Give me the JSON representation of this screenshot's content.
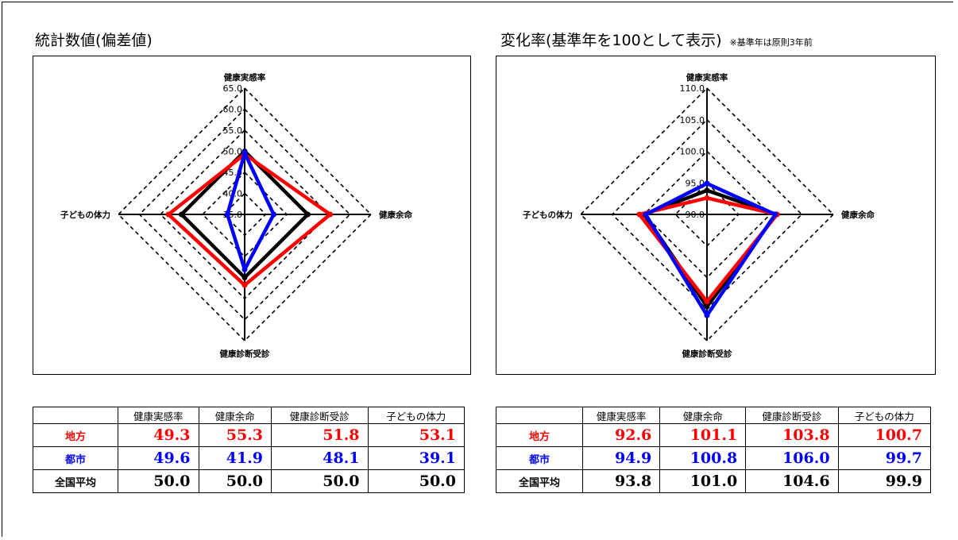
{
  "left": {
    "title": "統計数値(偏差値)",
    "note": ""
  },
  "right": {
    "title": "変化率(基準年を100として表示)",
    "note": "※基準年は原則3年前"
  },
  "colors": {
    "地方": "#ff0000",
    "都市": "#0000ff",
    "全国平均": "#000000"
  },
  "chart_data": [
    {
      "type": "radar",
      "title": "統計数値(偏差値)",
      "axes": [
        "健康実感率",
        "健康余命",
        "健康診断受診",
        "子どもの体力"
      ],
      "rlim": [
        35.0,
        65.0
      ],
      "ticks": [
        "35.0",
        "40.0",
        "45.0",
        "50.0",
        "55.0",
        "60.0",
        "65.0"
      ],
      "series": [
        {
          "name": "地方",
          "color": "#ff0000",
          "values": [
            49.3,
            55.3,
            51.8,
            53.1
          ]
        },
        {
          "name": "都市",
          "color": "#0000ff",
          "values": [
            49.6,
            41.9,
            48.1,
            39.1
          ]
        },
        {
          "name": "全国平均",
          "color": "#000000",
          "values": [
            50.0,
            50.0,
            50.0,
            50.0
          ]
        }
      ]
    },
    {
      "type": "radar",
      "title": "変化率(基準年を100として表示)",
      "axes": [
        "健康実感率",
        "健康余命",
        "健康診断受診",
        "子どもの体力"
      ],
      "rlim": [
        90.0,
        110.0
      ],
      "ticks": [
        "90.0",
        "95.0",
        "100.0",
        "105.0",
        "110.0"
      ],
      "series": [
        {
          "name": "地方",
          "color": "#ff0000",
          "values": [
            92.6,
            101.1,
            103.8,
            100.7
          ]
        },
        {
          "name": "都市",
          "color": "#0000ff",
          "values": [
            94.9,
            100.8,
            106.0,
            99.7
          ]
        },
        {
          "name": "全国平均",
          "color": "#000000",
          "values": [
            93.8,
            101.0,
            104.6,
            99.9
          ]
        }
      ]
    }
  ],
  "tables": [
    {
      "headers": [
        "",
        "健康実感率",
        "健康余命",
        "健康診断受診",
        "子どもの体力"
      ],
      "rows": [
        {
          "label": "地方",
          "values": [
            "49.3",
            "55.3",
            "51.8",
            "53.1"
          ]
        },
        {
          "label": "都市",
          "values": [
            "49.6",
            "41.9",
            "48.1",
            "39.1"
          ]
        },
        {
          "label": "全国平均",
          "values": [
            "50.0",
            "50.0",
            "50.0",
            "50.0"
          ]
        }
      ]
    },
    {
      "headers": [
        "",
        "健康実感率",
        "健康余命",
        "健康診断受診",
        "子どもの体力"
      ],
      "rows": [
        {
          "label": "地方",
          "values": [
            "92.6",
            "101.1",
            "103.8",
            "100.7"
          ]
        },
        {
          "label": "都市",
          "values": [
            "94.9",
            "100.8",
            "106.0",
            "99.7"
          ]
        },
        {
          "label": "全国平均",
          "values": [
            "93.8",
            "101.0",
            "104.6",
            "99.9"
          ]
        }
      ]
    }
  ]
}
